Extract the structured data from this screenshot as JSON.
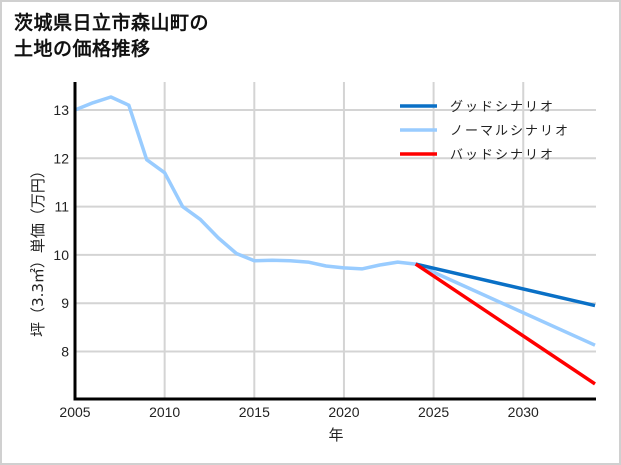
{
  "title_line1": "茨城県日立市森山町の",
  "title_line2": "土地の価格推移",
  "chart_data": {
    "type": "line",
    "title": "茨城県日立市森山町の土地の価格推移",
    "xlabel": "年",
    "ylabel": "坪（3.3㎡）単価（万円）",
    "xlim": [
      2005,
      2034
    ],
    "ylim": [
      7.0,
      13.6
    ],
    "xticks": [
      2005,
      2010,
      2015,
      2020,
      2025,
      2030
    ],
    "yticks": [
      8,
      9,
      10,
      11,
      12,
      13
    ],
    "grid": true,
    "legend_position": "upper right",
    "series": [
      {
        "name": "グッドシナリオ",
        "color": "#0a70c6",
        "x": [
          2024,
          2034
        ],
        "values": [
          9.81,
          8.95
        ]
      },
      {
        "name": "ノーマルシナリオ",
        "color": "#99ccff",
        "x": [
          2005,
          2006,
          2007,
          2008,
          2009,
          2010,
          2011,
          2012,
          2013,
          2014,
          2015,
          2016,
          2017,
          2018,
          2019,
          2020,
          2021,
          2022,
          2023,
          2024,
          2034
        ],
        "values": [
          13.0,
          13.15,
          13.27,
          13.1,
          11.97,
          11.7,
          11.0,
          10.73,
          10.35,
          10.03,
          9.88,
          9.89,
          9.88,
          9.85,
          9.77,
          9.73,
          9.71,
          9.79,
          9.85,
          9.81,
          8.13
        ]
      },
      {
        "name": "バッドシナリオ",
        "color": "#ff0000",
        "x": [
          2024,
          2034
        ],
        "values": [
          9.81,
          7.33
        ]
      }
    ]
  }
}
